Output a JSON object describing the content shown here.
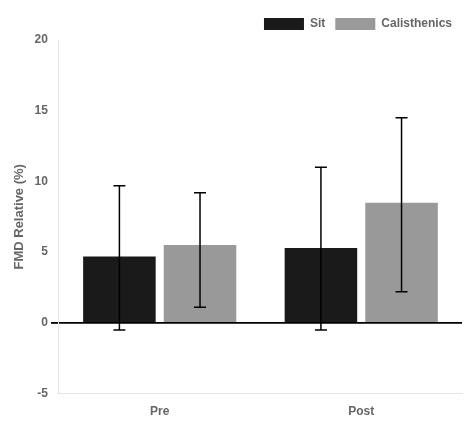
{
  "chart_data": {
    "type": "bar",
    "categories": [
      "Pre",
      "Post"
    ],
    "series": [
      {
        "name": "Sit",
        "color": "#1a1a1a",
        "values": [
          4.7,
          5.3
        ],
        "yerr_low": [
          5.2,
          5.8
        ],
        "yerr_high": [
          5.0,
          5.7
        ]
      },
      {
        "name": "Calisthenics",
        "color": "#999999",
        "values": [
          5.5,
          8.5
        ],
        "yerr_low": [
          4.4,
          6.3
        ],
        "yerr_high": [
          3.7,
          6.0
        ]
      }
    ],
    "ylabel": "FMD Relative (%)",
    "ylim": [
      -5,
      20
    ],
    "yticks": [
      -5,
      0,
      5,
      10,
      15,
      20
    ],
    "grid": false,
    "legend": "upper right"
  }
}
